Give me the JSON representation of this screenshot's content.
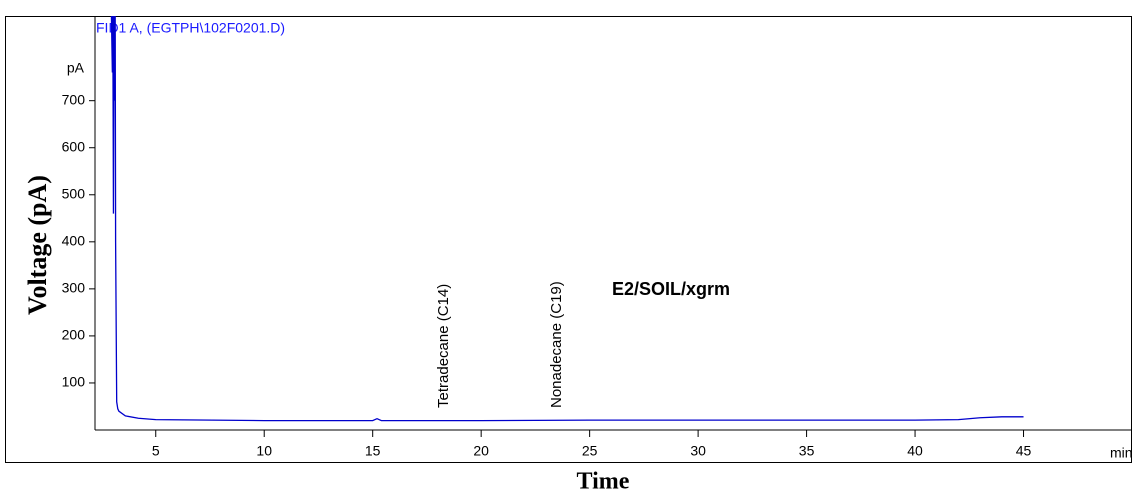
{
  "chart_data": {
    "type": "line",
    "title": "FID1 A,  (EGTPH\\102F0201.D)",
    "y_unit": "pA",
    "x_unit": "min",
    "ylabel": "Voltage (pA)",
    "xlabel": "Time",
    "annotations": [
      "Tetradecane (C14)",
      "Nonadecane (C19)",
      "E2/SOIL/xgrm"
    ],
    "x": [
      2.95,
      3.0,
      3.02,
      3.05,
      3.08,
      3.1,
      3.13,
      3.15,
      3.2,
      3.25,
      3.3,
      3.6,
      4.2,
      5,
      10,
      15,
      15.2,
      15.4,
      20,
      25,
      30,
      35,
      40,
      42,
      43,
      44,
      45
    ],
    "series": [
      {
        "color": "#0000cc",
        "values": [
          900,
          760,
          900,
          460,
          900,
          700,
          900,
          400,
          60,
          45,
          40,
          30,
          25,
          22,
          20,
          20,
          24,
          20,
          20,
          21,
          21,
          21,
          21,
          22,
          26,
          28,
          28
        ]
      }
    ],
    "xlim": [
      2.2,
      50
    ],
    "xticks": [
      5,
      10,
      15,
      20,
      25,
      30,
      35,
      40,
      45
    ],
    "ylim": [
      0,
      880
    ],
    "yticks": [
      100,
      200,
      300,
      400,
      500,
      600,
      700
    ],
    "grid": false
  }
}
